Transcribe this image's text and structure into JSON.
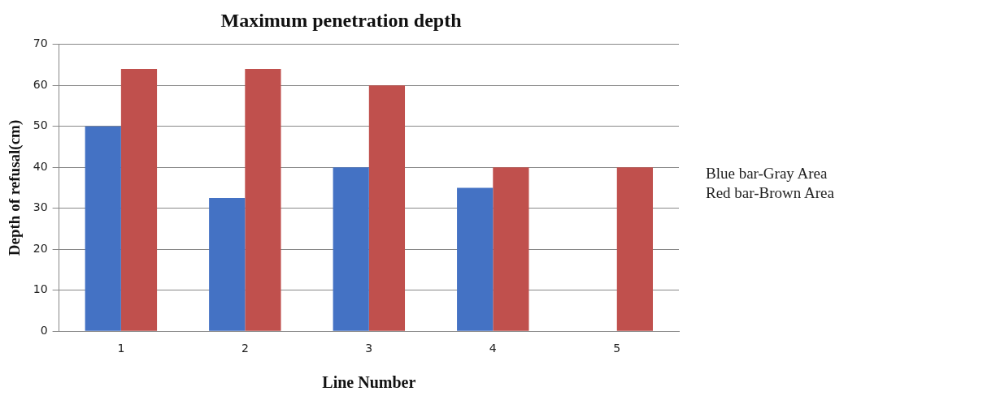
{
  "chart_data": {
    "type": "bar",
    "title": "Maximum penetration depth",
    "xlabel": "Line Number",
    "ylabel": "Depth of refusal(cm)",
    "categories": [
      "1",
      "2",
      "3",
      "4",
      "5"
    ],
    "series": [
      {
        "color": "#4472c4",
        "values": [
          50,
          32.5,
          40,
          35,
          null
        ]
      },
      {
        "color": "#c0504d",
        "values": [
          64,
          64,
          60,
          40,
          40
        ]
      }
    ],
    "ylim": [
      0,
      70
    ],
    "yticks": [
      0,
      10,
      20,
      30,
      40,
      50,
      60,
      70
    ],
    "grid": "y",
    "legend": false,
    "annotations": [
      "Blue bar-Gray Area",
      "Red bar-Brown Area"
    ]
  }
}
